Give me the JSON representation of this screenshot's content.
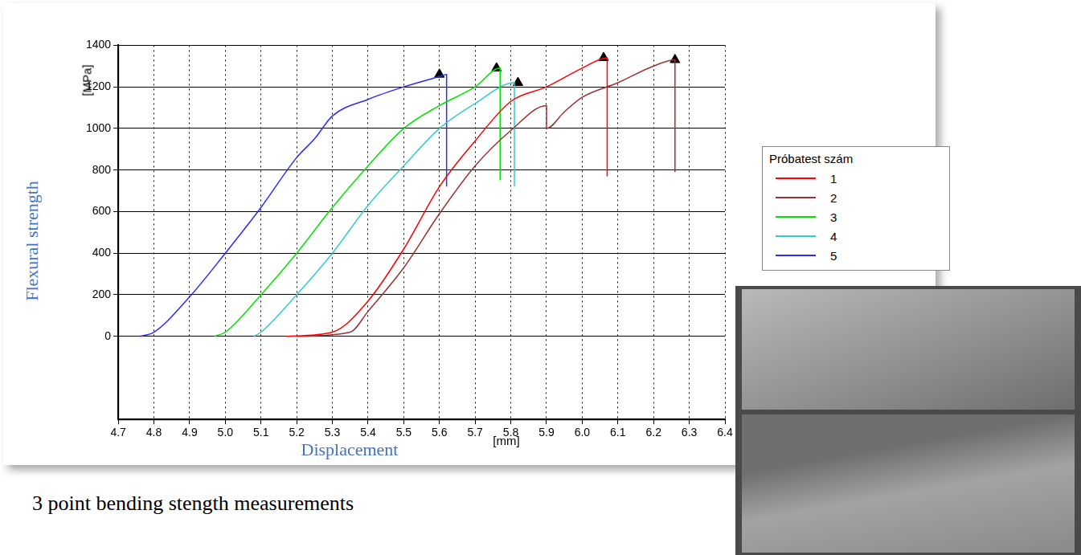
{
  "chart_data": {
    "type": "line",
    "title": "3 point bending stength measurements",
    "x_label": "Displacement",
    "x_unit": "[mm]",
    "y_label": "Flexural strength",
    "y_unit": "[MPa]",
    "legend_title": "Próbatest szám",
    "legend": "right",
    "grid": true,
    "xlim": [
      4.7,
      6.4
    ],
    "xticks": [
      4.7,
      4.8,
      4.9,
      {
        "value": 5.0,
        "label": "5.0"
      },
      5.1,
      5.2,
      5.3,
      5.4,
      5.5,
      5.6,
      5.7,
      5.8,
      5.9,
      {
        "value": 6.0,
        "label": "6.0"
      },
      6.1,
      6.2,
      6.3,
      6.4
    ],
    "ylim": [
      -400,
      1400
    ],
    "yticks": [
      0,
      200,
      400,
      600,
      800,
      1000,
      1200,
      1400
    ],
    "series": [
      {
        "name": "1",
        "color": "#ff0000",
        "x": [
          5.17,
          5.3,
          5.4,
          5.5,
          5.6,
          5.7,
          5.8,
          5.9,
          6.0,
          6.07,
          6.07
        ],
        "values": [
          0,
          20,
          170,
          420,
          720,
          940,
          1130,
          1200,
          1290,
          1340,
          770
        ],
        "peak": {
          "x": 6.06,
          "y": 1340
        }
      },
      {
        "name": "2",
        "color": "#993333",
        "x": [
          5.2,
          5.35,
          5.4,
          5.5,
          5.6,
          5.7,
          5.8,
          5.9,
          5.9,
          5.95,
          6.0,
          6.1,
          6.2,
          6.26,
          6.26
        ],
        "values": [
          0,
          20,
          120,
          330,
          590,
          820,
          990,
          1110,
          1000,
          1080,
          1150,
          1220,
          1300,
          1330,
          790
        ],
        "peak": {
          "x": 6.26,
          "y": 1330
        }
      },
      {
        "name": "3",
        "color": "#00e600",
        "x": [
          4.97,
          5.0,
          5.1,
          5.2,
          5.3,
          5.4,
          5.5,
          5.6,
          5.7,
          5.77,
          5.77
        ],
        "values": [
          0,
          20,
          200,
          400,
          620,
          820,
          1000,
          1110,
          1200,
          1290,
          750
        ],
        "peak": {
          "x": 5.76,
          "y": 1290
        }
      },
      {
        "name": "4",
        "color": "#33cccc",
        "x": [
          5.08,
          5.1,
          5.2,
          5.3,
          5.4,
          5.5,
          5.6,
          5.7,
          5.81,
          5.81
        ],
        "values": [
          0,
          20,
          200,
          400,
          630,
          820,
          1000,
          1120,
          1220,
          720
        ],
        "peak": {
          "x": 5.82,
          "y": 1220
        }
      },
      {
        "name": "5",
        "color": "#2b2bff",
        "x": [
          4.76,
          4.8,
          4.9,
          5.0,
          5.1,
          5.2,
          5.25,
          5.3,
          5.4,
          5.5,
          5.6,
          5.62,
          5.62
        ],
        "values": [
          0,
          20,
          190,
          400,
          620,
          860,
          950,
          1060,
          1140,
          1200,
          1250,
          1260,
          720
        ],
        "peak": {
          "x": 5.6,
          "y": 1260
        }
      }
    ]
  }
}
